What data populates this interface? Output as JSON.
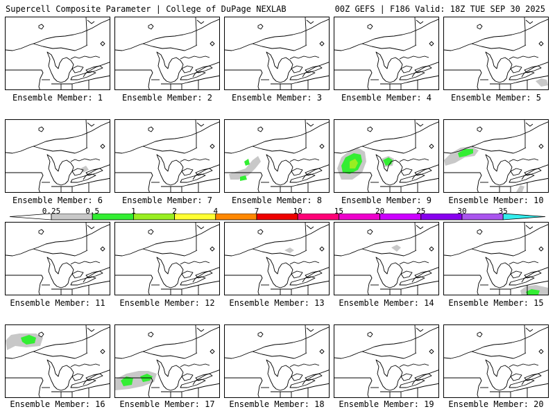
{
  "header": {
    "title": "Supercell Composite Parameter | College of DuPage NEXLAB",
    "run_info": "00Z GEFS | F186 Valid: 18Z TUE SEP 30 2025"
  },
  "member_label_prefix": "Ensemble Member: ",
  "members": [
    {
      "number": "1",
      "blobs": []
    },
    {
      "number": "2",
      "blobs": []
    },
    {
      "number": "3",
      "blobs": []
    },
    {
      "number": "4",
      "blobs": []
    },
    {
      "number": "5",
      "blobs": [
        {
          "level": "0.25"
        }
      ]
    },
    {
      "number": "6",
      "blobs": [
        {
          "level": "0.25"
        }
      ]
    },
    {
      "number": "7",
      "blobs": []
    },
    {
      "number": "8",
      "blobs": [
        {
          "level": "0.25"
        },
        {
          "level": "0.5"
        },
        {
          "level": "0.5"
        }
      ]
    },
    {
      "number": "9",
      "blobs": [
        {
          "level": "0.25"
        },
        {
          "level": "0.5"
        },
        {
          "level": "1"
        },
        {
          "level": "0.5"
        }
      ]
    },
    {
      "number": "10",
      "blobs": [
        {
          "level": "0.25"
        },
        {
          "level": "0.5"
        },
        {
          "level": "0.25"
        }
      ]
    },
    {
      "number": "11",
      "blobs": []
    },
    {
      "number": "12",
      "blobs": []
    },
    {
      "number": "13",
      "blobs": [
        {
          "level": "0.25"
        }
      ]
    },
    {
      "number": "14",
      "blobs": [
        {
          "level": "0.25"
        }
      ]
    },
    {
      "number": "15",
      "blobs": [
        {
          "level": "0.25"
        },
        {
          "level": "0.5"
        }
      ]
    },
    {
      "number": "16",
      "blobs": [
        {
          "level": "0.25"
        },
        {
          "level": "0.5"
        }
      ]
    },
    {
      "number": "17",
      "blobs": [
        {
          "level": "0.25"
        },
        {
          "level": "0.5"
        },
        {
          "level": "0.5"
        }
      ]
    },
    {
      "number": "18",
      "blobs": []
    },
    {
      "number": "19",
      "blobs": []
    },
    {
      "number": "20",
      "blobs": []
    }
  ],
  "colorbar": {
    "ticks": [
      "0.25",
      "0.5",
      "1",
      "2",
      "4",
      "7",
      "10",
      "15",
      "20",
      "25",
      "30",
      "35"
    ],
    "colors": [
      "#c8c8c8",
      "#33ee33",
      "#99ee22",
      "#ffff33",
      "#ff8800",
      "#ee0000",
      "#ff0077",
      "#ee00cc",
      "#cc00ff",
      "#8800ee",
      "#aa55ee",
      "#33eeee"
    ]
  }
}
